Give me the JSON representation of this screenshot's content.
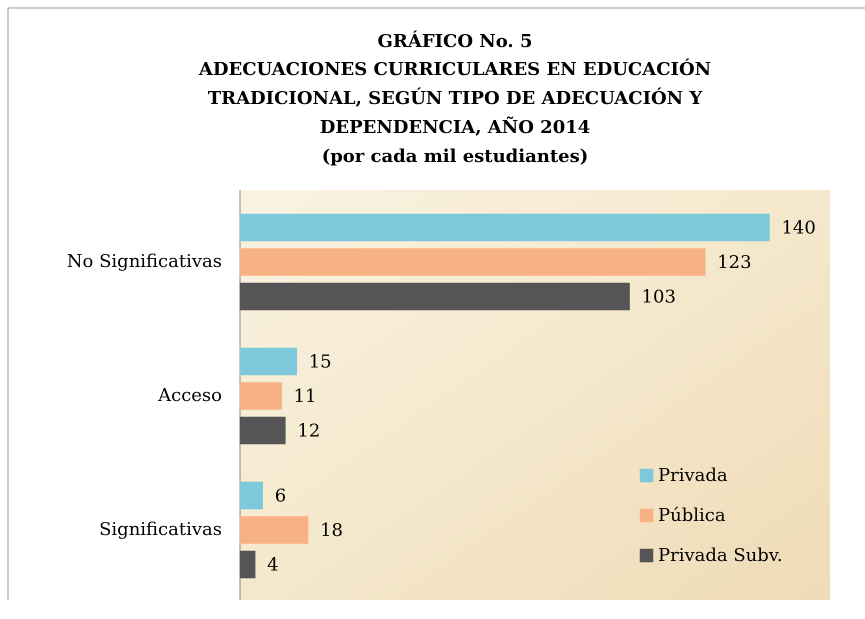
{
  "chart_data": {
    "type": "hbar",
    "title": [
      "GRÁFICO No. 5",
      "ADECUACIONES CURRICULARES EN EDUCACIÓN",
      "TRADICIONAL, SEGÚN TIPO DE ADECUACIÓN Y",
      "DEPENDENCIA, AÑO 2014"
    ],
    "subtitle": "(por cada mil estudiantes)",
    "categories": [
      "No Significativas",
      "Acceso",
      "Significativas"
    ],
    "series": [
      {
        "name": "Privada",
        "color": "#7ec8dc",
        "values": [
          140,
          15,
          6
        ]
      },
      {
        "name": "Pública",
        "color": "#f7b183",
        "values": [
          123,
          11,
          18
        ]
      },
      {
        "name": "Privada Subv.",
        "color": "#555555",
        "values": [
          103,
          12,
          4
        ]
      }
    ],
    "xlim": [
      0,
      156
    ],
    "legend": "lower right"
  }
}
